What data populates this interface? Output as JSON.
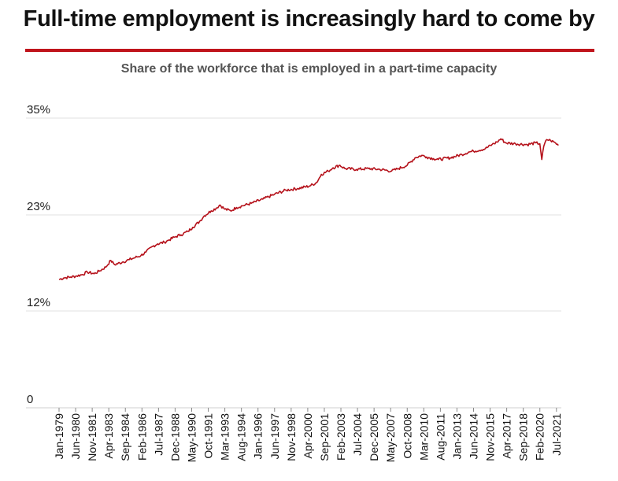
{
  "header": {
    "title": "Full-time employment is increasingly hard to come by"
  },
  "chart_data": {
    "type": "line",
    "title": "Full-time employment is increasingly hard to come by",
    "subtitle": "Share of the workforce that is employed in a part-time capacity",
    "xlabel": "",
    "ylabel": "",
    "ylim": [
      0,
      35
    ],
    "yticks": [
      {
        "value": 0,
        "label": "0"
      },
      {
        "value": 11.7,
        "label": "12%"
      },
      {
        "value": 23.3,
        "label": "23%"
      },
      {
        "value": 35,
        "label": "35%"
      }
    ],
    "xlim": [
      "1979-01",
      "2021-12"
    ],
    "xticks": [
      "Jan-1979",
      "Jun-1980",
      "Nov-1981",
      "Apr-1983",
      "Sep-1984",
      "Feb-1986",
      "Jul-1987",
      "Dec-1988",
      "May-1990",
      "Oct-1991",
      "Mar-1993",
      "Aug-1994",
      "Jan-1996",
      "Jun-1997",
      "Nov-1998",
      "Apr-2000",
      "Sep-2001",
      "Feb-2003",
      "Jul-2004",
      "Dec-2005",
      "May-2007",
      "Oct-2008",
      "Mar-2010",
      "Aug-2011",
      "Jan-2013",
      "Jun-2014",
      "Nov-2015",
      "Apr-2017",
      "Sep-2018",
      "Feb-2020",
      "Jul-2021"
    ],
    "grid": true,
    "legend": "none",
    "color": "#b5121b",
    "series": [
      {
        "name": "Part-time share of workforce (%)",
        "points": [
          [
            "1979-01",
            15.5
          ],
          [
            "1979-06",
            15.7
          ],
          [
            "1980-01",
            15.8
          ],
          [
            "1980-06",
            15.9
          ],
          [
            "1981-01",
            16.1
          ],
          [
            "1981-06",
            16.4
          ],
          [
            "1982-01",
            16.2
          ],
          [
            "1982-06",
            16.5
          ],
          [
            "1983-01",
            17.0
          ],
          [
            "1983-06",
            17.8
          ],
          [
            "1983-10",
            17.3
          ],
          [
            "1984-06",
            17.6
          ],
          [
            "1985-01",
            17.9
          ],
          [
            "1985-06",
            18.1
          ],
          [
            "1986-01",
            18.4
          ],
          [
            "1986-06",
            18.8
          ],
          [
            "1987-01",
            19.5
          ],
          [
            "1987-06",
            19.8
          ],
          [
            "1988-01",
            20.0
          ],
          [
            "1988-06",
            20.3
          ],
          [
            "1989-01",
            20.7
          ],
          [
            "1989-06",
            20.9
          ],
          [
            "1990-01",
            21.3
          ],
          [
            "1990-06",
            21.8
          ],
          [
            "1991-01",
            22.5
          ],
          [
            "1991-06",
            23.2
          ],
          [
            "1992-01",
            23.8
          ],
          [
            "1992-06",
            24.1
          ],
          [
            "1992-10",
            24.5
          ],
          [
            "1993-03",
            24.0
          ],
          [
            "1993-09",
            23.8
          ],
          [
            "1994-03",
            24.2
          ],
          [
            "1994-09",
            24.4
          ],
          [
            "1995-06",
            24.7
          ],
          [
            "1996-06",
            25.2
          ],
          [
            "1997-06",
            25.8
          ],
          [
            "1998-06",
            26.3
          ],
          [
            "1999-06",
            26.5
          ],
          [
            "2000-06",
            26.8
          ],
          [
            "2001-01",
            27.2
          ],
          [
            "2001-06",
            28.2
          ],
          [
            "2002-01",
            28.6
          ],
          [
            "2002-06",
            29.0
          ],
          [
            "2003-01",
            29.3
          ],
          [
            "2003-06",
            28.9
          ],
          [
            "2004-06",
            28.8
          ],
          [
            "2005-06",
            28.9
          ],
          [
            "2006-06",
            28.8
          ],
          [
            "2007-06",
            28.6
          ],
          [
            "2008-01",
            28.9
          ],
          [
            "2008-10",
            29.3
          ],
          [
            "2009-06",
            30.2
          ],
          [
            "2010-01",
            30.5
          ],
          [
            "2010-06",
            30.3
          ],
          [
            "2011-01",
            30.1
          ],
          [
            "2011-06",
            30.0
          ],
          [
            "2012-06",
            30.2
          ],
          [
            "2013-06",
            30.6
          ],
          [
            "2014-01",
            30.9
          ],
          [
            "2014-06",
            31.0
          ],
          [
            "2015-06",
            31.3
          ],
          [
            "2016-01",
            31.8
          ],
          [
            "2016-06",
            32.1
          ],
          [
            "2016-10",
            32.5
          ],
          [
            "2017-03",
            32.0
          ],
          [
            "2018-01",
            31.9
          ],
          [
            "2019-01",
            31.8
          ],
          [
            "2019-10",
            32.0
          ],
          [
            "2020-02",
            31.9
          ],
          [
            "2020-04",
            30.0
          ],
          [
            "2020-06",
            31.6
          ],
          [
            "2020-09",
            32.4
          ],
          [
            "2021-01",
            32.3
          ],
          [
            "2021-06",
            32.0
          ],
          [
            "2021-09",
            31.7
          ]
        ]
      }
    ]
  }
}
